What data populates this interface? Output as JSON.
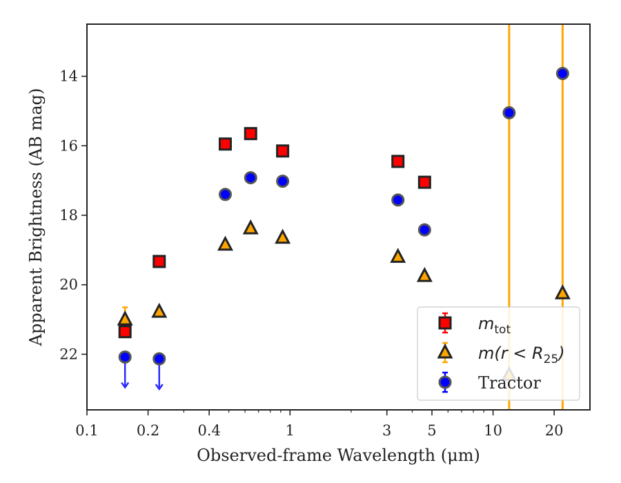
{
  "chart_data": {
    "type": "scatter",
    "title": "",
    "xlabel": "Observed-frame Wavelength (μm)",
    "ylabel": "Apparent Brightness (AB mag)",
    "xscale": "log",
    "xlim": [
      0.1,
      30
    ],
    "ylim": [
      23.6,
      12.5
    ],
    "y_inverted": true,
    "x_ticks": [
      0.1,
      0.2,
      0.4,
      1,
      3,
      5,
      10,
      20
    ],
    "x_tick_labels": [
      "0.1",
      "0.2",
      "0.4",
      "1",
      "3",
      "5",
      "10",
      "20"
    ],
    "y_ticks": [
      14,
      16,
      18,
      20,
      22
    ],
    "y_tick_labels": [
      "14",
      "16",
      "18",
      "20",
      "22"
    ],
    "grid": false,
    "legend_position": "lower-right",
    "series": [
      {
        "name": "m_tot",
        "legend_main": "m",
        "legend_sub": "tot",
        "marker": "square",
        "color": "#ff0000",
        "edge_color": "#222222",
        "x": [
          0.154,
          0.227,
          0.48,
          0.64,
          0.92,
          3.4,
          4.6
        ],
        "y": [
          21.35,
          19.33,
          15.95,
          15.65,
          16.15,
          16.45,
          17.05
        ],
        "yerr": [
          0.15,
          0.05,
          0.04,
          0.03,
          0.03,
          0.04,
          0.05
        ]
      },
      {
        "name": "m(r < R25)",
        "legend_main": "m(r < R",
        "legend_sub": "25",
        "legend_close": ")",
        "marker": "triangle",
        "color": "#ffa500",
        "edge_color": "#222222",
        "x": [
          0.154,
          0.227,
          0.48,
          0.64,
          0.92,
          3.4,
          4.6,
          12,
          22
        ],
        "y": [
          21.0,
          20.78,
          18.85,
          18.38,
          18.65,
          19.2,
          19.75,
          22.6,
          20.25
        ],
        "yerr": [
          0.35,
          0.05,
          0.03,
          0.03,
          0.03,
          0.05,
          0.06,
          30,
          30
        ]
      },
      {
        "name": "Tractor",
        "marker": "circle",
        "color": "#0000ff",
        "edge_color": "#555555",
        "x": [
          0.154,
          0.227,
          0.48,
          0.64,
          0.92,
          3.4,
          4.6,
          12,
          22
        ],
        "y": [
          22.08,
          22.13,
          17.4,
          16.92,
          17.02,
          17.56,
          18.42,
          15.05,
          13.92
        ],
        "yerr": [
          0,
          0,
          0.05,
          0.04,
          0.05,
          0.06,
          0.08,
          0.06,
          0.08
        ],
        "upper_limit": [
          true,
          true,
          false,
          false,
          false,
          false,
          false,
          false,
          false
        ]
      }
    ]
  }
}
